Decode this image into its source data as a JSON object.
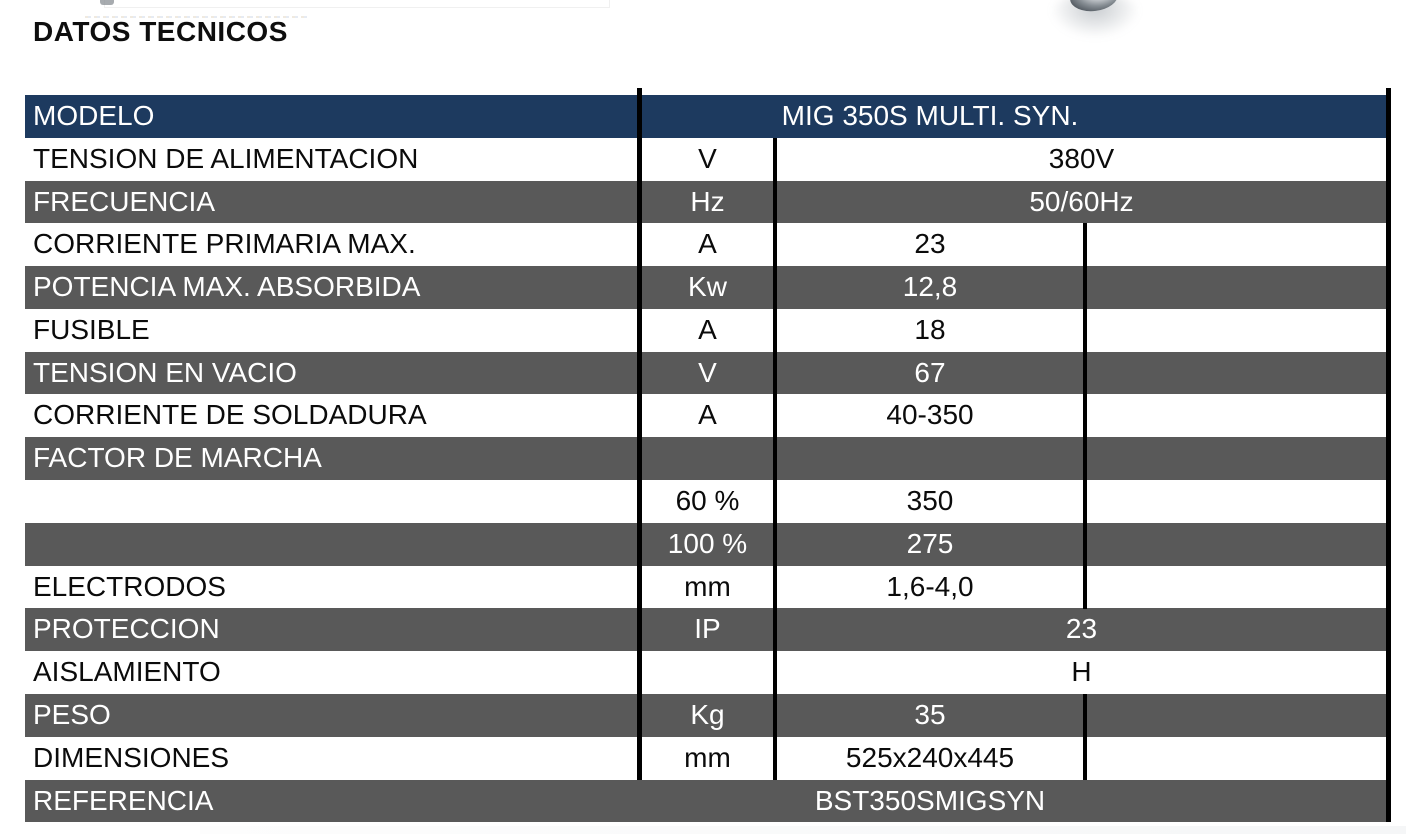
{
  "title": "DATOS TECNICOS",
  "colors": {
    "header_navy": "#1d3a5f",
    "row_gray": "#595959",
    "row_white": "#ffffff",
    "grid_black": "#000000",
    "text_on_dark": "#ffffff",
    "text_on_light": "#0b0b0b"
  },
  "table": {
    "rows": [
      {
        "label": "MODELO",
        "unit": "",
        "value": "MIG 350S MULTI. SYN."
      },
      {
        "label": "TENSION DE ALIMENTACION",
        "unit": "V",
        "value": "380V"
      },
      {
        "label": "FRECUENCIA",
        "unit": "Hz",
        "value": "50/60Hz"
      },
      {
        "label": "CORRIENTE PRIMARIA MAX.",
        "unit": "A",
        "value": "23"
      },
      {
        "label": "POTENCIA MAX. ABSORBIDA",
        "unit": "Kw",
        "value": "12,8"
      },
      {
        "label": "FUSIBLE",
        "unit": "A",
        "value": "18"
      },
      {
        "label": "TENSION EN VACIO",
        "unit": "V",
        "value": "67"
      },
      {
        "label": "CORRIENTE DE SOLDADURA",
        "unit": "A",
        "value": "40-350"
      },
      {
        "label": "FACTOR DE MARCHA",
        "unit": "",
        "value": ""
      },
      {
        "label": "",
        "unit": "60 %",
        "value": "350"
      },
      {
        "label": "",
        "unit": "100 %",
        "value": "275"
      },
      {
        "label": "ELECTRODOS",
        "unit": "mm",
        "value": "1,6-4,0"
      },
      {
        "label": "PROTECCION",
        "unit": "IP",
        "value": "23"
      },
      {
        "label": "AISLAMIENTO",
        "unit": "",
        "value": "H"
      },
      {
        "label": "PESO",
        "unit": "Kg",
        "value": "35"
      },
      {
        "label": "DIMENSIONES",
        "unit": "mm",
        "value": "525x240x445"
      },
      {
        "label": "REFERENCIA",
        "unit": "",
        "value": "BST350SMIGSYN"
      }
    ]
  },
  "decorations": {
    "knob_fragment": "metallic-knob-photo-fragment",
    "top_band": "scan-artifact-band",
    "bottom_strip": "scan-artifact-strip"
  }
}
